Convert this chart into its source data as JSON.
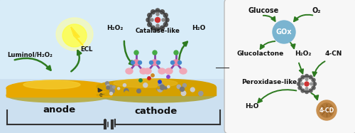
{
  "bg_light": "#c5dff0",
  "bg_dark": "#a8cce0",
  "anode_gold": "#e8a800",
  "anode_highlight": "#f5cc30",
  "anode_rim": "#ccc068",
  "cathode_gold": "#d4a000",
  "green_arrow": "#2d7a20",
  "box_bg": "#f7f7f7",
  "gox_color": "#7ab4d0",
  "cd_color": "#c89050",
  "label_anode": "anode",
  "label_cathode": "cathode",
  "luminol_text": "Luminol/H₂O₂",
  "ecl_text": "ECL",
  "h2o2_left": "H₂O₂",
  "h2o_right": "H₂O",
  "catalase_text": "Catalase-like",
  "gox_text": "GOx",
  "glucose_text": "Glucose",
  "o2_text": "O₂",
  "glucolactone_text": "Glucolactone",
  "h2o2_right_text": "H₂O₂",
  "peroxidase_text": "Peroxidase-like",
  "h2o_bottom_text": "H₂O",
  "cn4_text": "4-CN",
  "cd4_text": "4-CD",
  "e_text": "e⁻"
}
